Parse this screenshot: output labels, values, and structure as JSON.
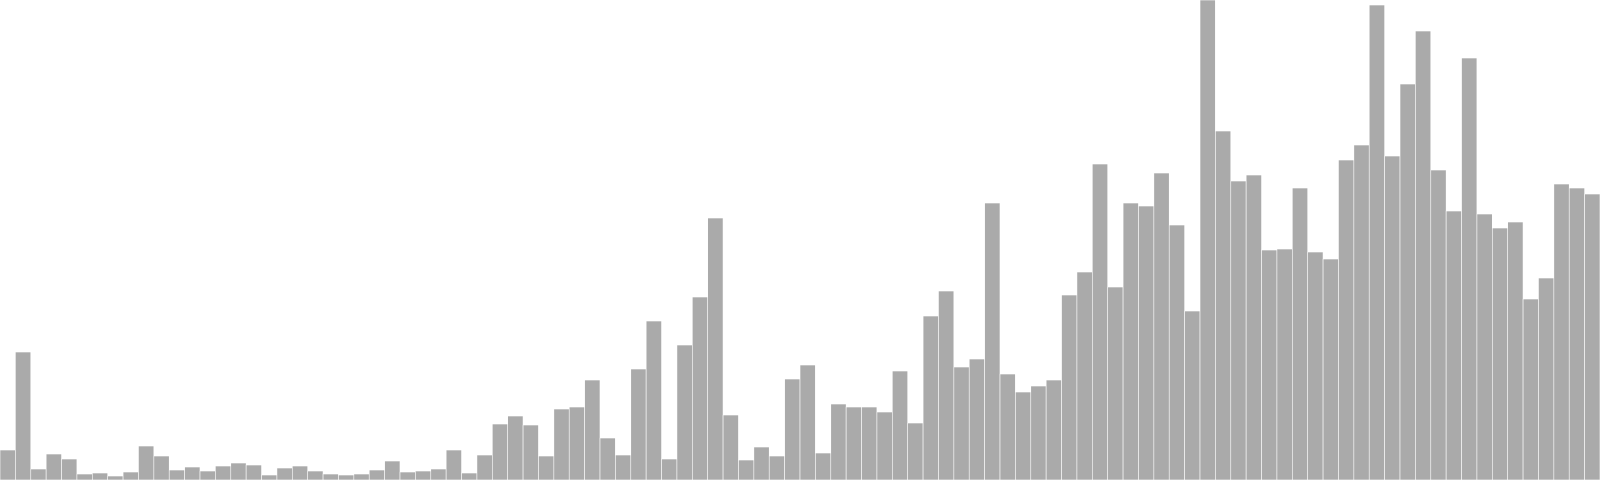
{
  "colors": {
    "background": "#ffffff",
    "bar_fill": "#aaaaaa",
    "bar_edge": "#ffffff"
  },
  "chart_data": {
    "type": "bar",
    "title": "",
    "xlabel": "",
    "ylabel": "",
    "axes_visible": false,
    "grid": false,
    "legend": "none",
    "ylim": [
      0,
      480
    ],
    "values": [
      30,
      128,
      11,
      26,
      21,
      6,
      7,
      4,
      8,
      34,
      24,
      10,
      13,
      9,
      14,
      17,
      15,
      5,
      12,
      14,
      9,
      6,
      5,
      6,
      10,
      19,
      8,
      9,
      11,
      30,
      7,
      25,
      56,
      64,
      55,
      24,
      71,
      73,
      100,
      42,
      25,
      111,
      159,
      21,
      135,
      183,
      262,
      65,
      20,
      33,
      24,
      101,
      115,
      27,
      76,
      73,
      73,
      68,
      109,
      57,
      164,
      189,
      113,
      121,
      277,
      106,
      88,
      94,
      100,
      185,
      208,
      316,
      193,
      277,
      274,
      307,
      255,
      169,
      480,
      349,
      299,
      305,
      230,
      231,
      292,
      228,
      221,
      320,
      335,
      475,
      324,
      396,
      449,
      310,
      269,
      422,
      266,
      252,
      258,
      181,
      202,
      296,
      292,
      286
    ]
  }
}
